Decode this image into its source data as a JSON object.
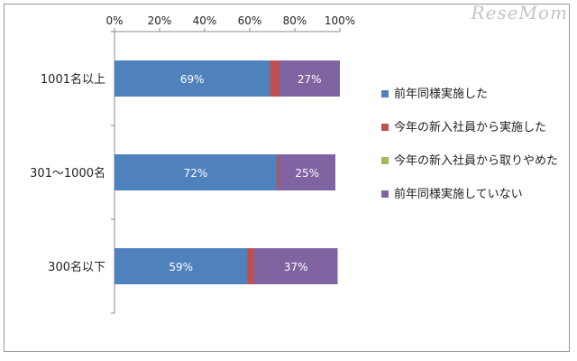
{
  "watermark": "ReseMom",
  "colors": {
    "series": [
      "#4f81bd",
      "#c0504d",
      "#9bbb59",
      "#8064a2"
    ],
    "axis": "#8a8a8a",
    "grid": "#bfbfbf"
  },
  "chart_data": {
    "type": "bar",
    "orientation": "horizontal",
    "stacked": "percent",
    "title": "",
    "xlabel": "",
    "ylabel": "",
    "xlim": [
      0,
      100
    ],
    "x_ticks": [
      "0%",
      "20%",
      "40%",
      "60%",
      "80%",
      "100%"
    ],
    "categories": [
      "1001名以上",
      "301～1000名",
      "300名以下"
    ],
    "series": [
      {
        "name": "前年同様実施した",
        "values": [
          69,
          72,
          59
        ],
        "labels": [
          "69%",
          "72%",
          "59%"
        ]
      },
      {
        "name": "今年の新入社員から実施した",
        "values": [
          4,
          1,
          3
        ],
        "labels": [
          "",
          "",
          ""
        ]
      },
      {
        "name": "今年の新入社員から取りやめた",
        "values": [
          0,
          0,
          0
        ],
        "labels": [
          "",
          "",
          ""
        ]
      },
      {
        "name": "前年同様実施していない",
        "values": [
          27,
          25,
          37
        ],
        "labels": [
          "27%",
          "25%",
          "37%"
        ]
      }
    ],
    "legend_position": "right",
    "grid": false
  }
}
